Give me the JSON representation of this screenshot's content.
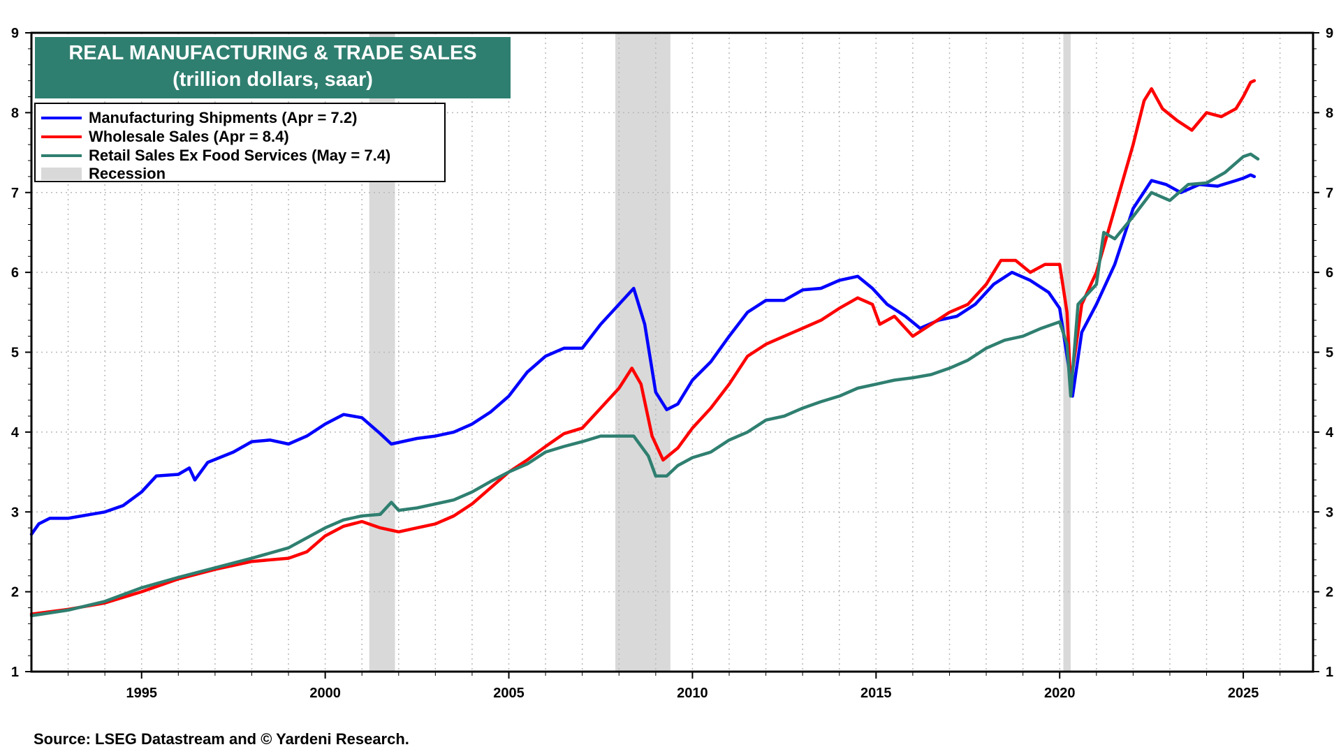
{
  "title": {
    "line1": "REAL MANUFACTURING & TRADE SALES",
    "line2": "(trillion dollars, saar)"
  },
  "source": "Source: LSEG Datastream and © Yardeni Research.",
  "legend": [
    {
      "label": "Manufacturing Shipments (Apr = 7.2)",
      "color": "#0000ff",
      "kind": "line"
    },
    {
      "label": "Wholesale Sales (Apr = 8.4)",
      "color": "#ff0000",
      "kind": "line"
    },
    {
      "label": "Retail Sales Ex Food Services (May = 7.4)",
      "color": "#2f7f70",
      "kind": "line"
    },
    {
      "label": "Recession",
      "color": "#d9d9d9",
      "kind": "band"
    }
  ],
  "chart_data": {
    "type": "line",
    "xlim": [
      1992.0,
      2026.9
    ],
    "ylim": [
      1,
      9
    ],
    "x_ticks": [
      1995,
      2000,
      2005,
      2010,
      2015,
      2020,
      2025
    ],
    "y_ticks": [
      1,
      2,
      3,
      4,
      5,
      6,
      7,
      8,
      9
    ],
    "grid": true,
    "dual_y_axis": true,
    "legend_position": "top-left",
    "recessions": [
      [
        2001.2,
        2001.9
      ],
      [
        2007.9,
        2009.4
      ],
      [
        2020.1,
        2020.3
      ]
    ],
    "series": [
      {
        "name": "Manufacturing Shipments (Apr = 7.2)",
        "color": "#0000ff",
        "points": [
          [
            1992.0,
            2.72
          ],
          [
            1992.2,
            2.85
          ],
          [
            1992.5,
            2.92
          ],
          [
            1993.0,
            2.92
          ],
          [
            1993.5,
            2.96
          ],
          [
            1994.0,
            3.0
          ],
          [
            1994.5,
            3.08
          ],
          [
            1995.0,
            3.25
          ],
          [
            1995.4,
            3.45
          ],
          [
            1996.0,
            3.47
          ],
          [
            1996.3,
            3.55
          ],
          [
            1996.45,
            3.4
          ],
          [
            1996.8,
            3.62
          ],
          [
            1997.5,
            3.75
          ],
          [
            1998.0,
            3.88
          ],
          [
            1998.5,
            3.9
          ],
          [
            1999.0,
            3.85
          ],
          [
            1999.5,
            3.95
          ],
          [
            2000.0,
            4.1
          ],
          [
            2000.5,
            4.22
          ],
          [
            2001.0,
            4.18
          ],
          [
            2001.5,
            3.98
          ],
          [
            2001.8,
            3.85
          ],
          [
            2002.5,
            3.92
          ],
          [
            2003.0,
            3.95
          ],
          [
            2003.5,
            4.0
          ],
          [
            2004.0,
            4.1
          ],
          [
            2004.5,
            4.25
          ],
          [
            2005.0,
            4.45
          ],
          [
            2005.5,
            4.75
          ],
          [
            2006.0,
            4.95
          ],
          [
            2006.5,
            5.05
          ],
          [
            2007.0,
            5.05
          ],
          [
            2007.5,
            5.35
          ],
          [
            2008.0,
            5.6
          ],
          [
            2008.4,
            5.8
          ],
          [
            2008.7,
            5.35
          ],
          [
            2009.0,
            4.5
          ],
          [
            2009.3,
            4.28
          ],
          [
            2009.6,
            4.35
          ],
          [
            2010.0,
            4.65
          ],
          [
            2010.5,
            4.88
          ],
          [
            2011.0,
            5.2
          ],
          [
            2011.5,
            5.5
          ],
          [
            2012.0,
            5.65
          ],
          [
            2012.5,
            5.65
          ],
          [
            2013.0,
            5.78
          ],
          [
            2013.5,
            5.8
          ],
          [
            2014.0,
            5.9
          ],
          [
            2014.5,
            5.95
          ],
          [
            2014.9,
            5.8
          ],
          [
            2015.3,
            5.6
          ],
          [
            2015.8,
            5.45
          ],
          [
            2016.2,
            5.3
          ],
          [
            2016.7,
            5.4
          ],
          [
            2017.2,
            5.45
          ],
          [
            2017.7,
            5.6
          ],
          [
            2018.2,
            5.85
          ],
          [
            2018.7,
            6.0
          ],
          [
            2019.2,
            5.9
          ],
          [
            2019.7,
            5.75
          ],
          [
            2020.0,
            5.55
          ],
          [
            2020.25,
            4.8
          ],
          [
            2020.35,
            4.45
          ],
          [
            2020.6,
            5.25
          ],
          [
            2021.0,
            5.6
          ],
          [
            2021.5,
            6.1
          ],
          [
            2022.0,
            6.8
          ],
          [
            2022.5,
            7.15
          ],
          [
            2022.9,
            7.1
          ],
          [
            2023.3,
            7.0
          ],
          [
            2023.8,
            7.1
          ],
          [
            2024.3,
            7.08
          ],
          [
            2024.8,
            7.15
          ],
          [
            2025.0,
            7.18
          ],
          [
            2025.2,
            7.22
          ],
          [
            2025.3,
            7.2
          ]
        ]
      },
      {
        "name": "Wholesale Sales (Apr = 8.4)",
        "color": "#ff0000",
        "points": [
          [
            1992.0,
            1.72
          ],
          [
            1993.0,
            1.78
          ],
          [
            1994.0,
            1.86
          ],
          [
            1995.0,
            2.0
          ],
          [
            1996.0,
            2.16
          ],
          [
            1997.0,
            2.28
          ],
          [
            1998.0,
            2.38
          ],
          [
            1999.0,
            2.42
          ],
          [
            1999.5,
            2.5
          ],
          [
            2000.0,
            2.7
          ],
          [
            2000.5,
            2.82
          ],
          [
            2001.0,
            2.88
          ],
          [
            2001.5,
            2.8
          ],
          [
            2002.0,
            2.75
          ],
          [
            2002.5,
            2.8
          ],
          [
            2003.0,
            2.85
          ],
          [
            2003.5,
            2.95
          ],
          [
            2004.0,
            3.1
          ],
          [
            2004.5,
            3.3
          ],
          [
            2005.0,
            3.5
          ],
          [
            2005.5,
            3.65
          ],
          [
            2006.0,
            3.82
          ],
          [
            2006.5,
            3.98
          ],
          [
            2007.0,
            4.05
          ],
          [
            2007.5,
            4.3
          ],
          [
            2008.0,
            4.55
          ],
          [
            2008.35,
            4.8
          ],
          [
            2008.6,
            4.6
          ],
          [
            2008.9,
            3.95
          ],
          [
            2009.2,
            3.65
          ],
          [
            2009.6,
            3.8
          ],
          [
            2010.0,
            4.05
          ],
          [
            2010.5,
            4.3
          ],
          [
            2011.0,
            4.6
          ],
          [
            2011.5,
            4.95
          ],
          [
            2012.0,
            5.1
          ],
          [
            2012.5,
            5.2
          ],
          [
            2013.0,
            5.3
          ],
          [
            2013.5,
            5.4
          ],
          [
            2014.0,
            5.55
          ],
          [
            2014.5,
            5.68
          ],
          [
            2014.9,
            5.6
          ],
          [
            2015.1,
            5.35
          ],
          [
            2015.5,
            5.45
          ],
          [
            2016.0,
            5.2
          ],
          [
            2016.5,
            5.35
          ],
          [
            2017.0,
            5.5
          ],
          [
            2017.5,
            5.6
          ],
          [
            2018.0,
            5.85
          ],
          [
            2018.4,
            6.15
          ],
          [
            2018.8,
            6.15
          ],
          [
            2019.2,
            6.0
          ],
          [
            2019.6,
            6.1
          ],
          [
            2020.0,
            6.1
          ],
          [
            2020.2,
            5.5
          ],
          [
            2020.3,
            4.6
          ],
          [
            2020.6,
            5.6
          ],
          [
            2021.0,
            6.0
          ],
          [
            2021.5,
            6.8
          ],
          [
            2022.0,
            7.6
          ],
          [
            2022.3,
            8.15
          ],
          [
            2022.5,
            8.3
          ],
          [
            2022.8,
            8.05
          ],
          [
            2023.2,
            7.9
          ],
          [
            2023.6,
            7.78
          ],
          [
            2024.0,
            8.0
          ],
          [
            2024.4,
            7.95
          ],
          [
            2024.8,
            8.05
          ],
          [
            2025.0,
            8.2
          ],
          [
            2025.2,
            8.38
          ],
          [
            2025.3,
            8.4
          ]
        ]
      },
      {
        "name": "Retail Sales Ex Food Services (May = 7.4)",
        "color": "#2f7f70",
        "points": [
          [
            1992.0,
            1.7
          ],
          [
            1993.0,
            1.77
          ],
          [
            1994.0,
            1.88
          ],
          [
            1995.0,
            2.05
          ],
          [
            1996.0,
            2.18
          ],
          [
            1997.0,
            2.3
          ],
          [
            1998.0,
            2.42
          ],
          [
            1999.0,
            2.55
          ],
          [
            2000.0,
            2.8
          ],
          [
            2000.5,
            2.9
          ],
          [
            2001.0,
            2.95
          ],
          [
            2001.5,
            2.97
          ],
          [
            2001.8,
            3.12
          ],
          [
            2002.0,
            3.02
          ],
          [
            2002.5,
            3.05
          ],
          [
            2003.0,
            3.1
          ],
          [
            2003.5,
            3.15
          ],
          [
            2004.0,
            3.25
          ],
          [
            2004.5,
            3.38
          ],
          [
            2005.0,
            3.5
          ],
          [
            2005.5,
            3.6
          ],
          [
            2006.0,
            3.75
          ],
          [
            2006.5,
            3.82
          ],
          [
            2007.0,
            3.88
          ],
          [
            2007.5,
            3.95
          ],
          [
            2008.0,
            3.95
          ],
          [
            2008.4,
            3.95
          ],
          [
            2008.8,
            3.7
          ],
          [
            2009.0,
            3.45
          ],
          [
            2009.3,
            3.45
          ],
          [
            2009.6,
            3.58
          ],
          [
            2010.0,
            3.68
          ],
          [
            2010.5,
            3.75
          ],
          [
            2011.0,
            3.9
          ],
          [
            2011.5,
            4.0
          ],
          [
            2012.0,
            4.15
          ],
          [
            2012.5,
            4.2
          ],
          [
            2013.0,
            4.3
          ],
          [
            2013.5,
            4.38
          ],
          [
            2014.0,
            4.45
          ],
          [
            2014.5,
            4.55
          ],
          [
            2015.0,
            4.6
          ],
          [
            2015.5,
            4.65
          ],
          [
            2016.0,
            4.68
          ],
          [
            2016.5,
            4.72
          ],
          [
            2017.0,
            4.8
          ],
          [
            2017.5,
            4.9
          ],
          [
            2018.0,
            5.05
          ],
          [
            2018.5,
            5.15
          ],
          [
            2019.0,
            5.2
          ],
          [
            2019.5,
            5.3
          ],
          [
            2020.0,
            5.38
          ],
          [
            2020.2,
            5.1
          ],
          [
            2020.3,
            4.45
          ],
          [
            2020.5,
            5.6
          ],
          [
            2021.0,
            5.85
          ],
          [
            2021.2,
            6.5
          ],
          [
            2021.5,
            6.42
          ],
          [
            2022.0,
            6.7
          ],
          [
            2022.5,
            7.0
          ],
          [
            2023.0,
            6.9
          ],
          [
            2023.5,
            7.1
          ],
          [
            2024.0,
            7.12
          ],
          [
            2024.5,
            7.25
          ],
          [
            2025.0,
            7.45
          ],
          [
            2025.2,
            7.48
          ],
          [
            2025.4,
            7.42
          ]
        ]
      }
    ]
  }
}
